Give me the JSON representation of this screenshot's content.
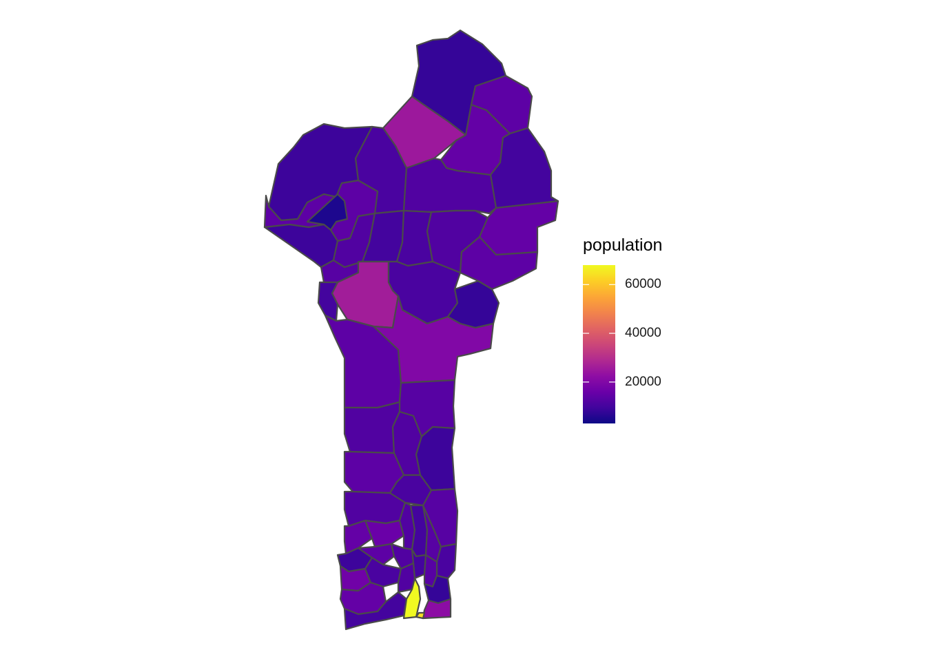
{
  "legend": {
    "title": "population",
    "min": 3000,
    "max": 68000,
    "ticks": [
      {
        "value": 60000,
        "label": "60000"
      },
      {
        "value": 40000,
        "label": "40000"
      },
      {
        "value": 20000,
        "label": "20000"
      }
    ],
    "colormap": [
      "#0d0887",
      "#41049d",
      "#6a00a8",
      "#8f0da4",
      "#b12a90",
      "#cc4778",
      "#e16462",
      "#f2844b",
      "#fca636",
      "#fcce25",
      "#f0f921"
    ]
  },
  "outline_color": "#4a4a4a",
  "regions": [
    {
      "id": "far-north",
      "population": 8000
    },
    {
      "id": "north-east-top",
      "population": 14000
    },
    {
      "id": "north-west",
      "population": 9000
    },
    {
      "id": "north-center",
      "population": 11000
    },
    {
      "id": "north-magenta",
      "population": 25000
    },
    {
      "id": "north-east-mid",
      "population": 15000
    },
    {
      "id": "north-east",
      "population": 10000
    },
    {
      "id": "north-center-2",
      "population": 12000
    },
    {
      "id": "west-top",
      "population": 14000
    },
    {
      "id": "west-small",
      "population": 5000
    },
    {
      "id": "west-1",
      "population": 9000
    },
    {
      "id": "west-2",
      "population": 12000
    },
    {
      "id": "west-3",
      "population": 13000
    },
    {
      "id": "center-1",
      "population": 10000
    },
    {
      "id": "center-2",
      "population": 11000
    },
    {
      "id": "center-3",
      "population": 12000
    },
    {
      "id": "east-1",
      "population": 15000
    },
    {
      "id": "east-2",
      "population": 14000
    },
    {
      "id": "center-magenta",
      "population": 26000
    },
    {
      "id": "center-4",
      "population": 11000
    },
    {
      "id": "east-3",
      "population": 8000
    },
    {
      "id": "west-strip",
      "population": 10000
    },
    {
      "id": "center-purple",
      "population": 20000
    },
    {
      "id": "mid-1",
      "population": 14000
    },
    {
      "id": "mid-2",
      "population": 13000
    },
    {
      "id": "south-1",
      "population": 12000
    },
    {
      "id": "south-2",
      "population": 12000
    },
    {
      "id": "south-3",
      "population": 9000
    },
    {
      "id": "south-4",
      "population": 14000
    },
    {
      "id": "south-5",
      "population": 11000
    },
    {
      "id": "south-6",
      "population": 13000
    },
    {
      "id": "south-7",
      "population": 12000
    },
    {
      "id": "south-8",
      "population": 15000
    },
    {
      "id": "south-9",
      "population": 16000
    },
    {
      "id": "south-10",
      "population": 12000
    },
    {
      "id": "south-11",
      "population": 10000
    },
    {
      "id": "south-12",
      "population": 13000
    },
    {
      "id": "south-13",
      "population": 11000
    },
    {
      "id": "south-14",
      "population": 9000
    },
    {
      "id": "south-15",
      "population": 14000
    },
    {
      "id": "south-16",
      "population": 12000
    },
    {
      "id": "south-17",
      "population": 10000
    },
    {
      "id": "south-18",
      "population": 13000
    },
    {
      "id": "south-19",
      "population": 17000
    },
    {
      "id": "south-20",
      "population": 11000
    },
    {
      "id": "south-21",
      "population": 12000
    },
    {
      "id": "south-22",
      "population": 8000
    },
    {
      "id": "south-23",
      "population": 15000
    },
    {
      "id": "coast-yellow",
      "population": 68000
    },
    {
      "id": "coast-small",
      "population": 64000
    },
    {
      "id": "coast-east",
      "population": 22000
    },
    {
      "id": "coast-west",
      "population": 10000
    }
  ]
}
